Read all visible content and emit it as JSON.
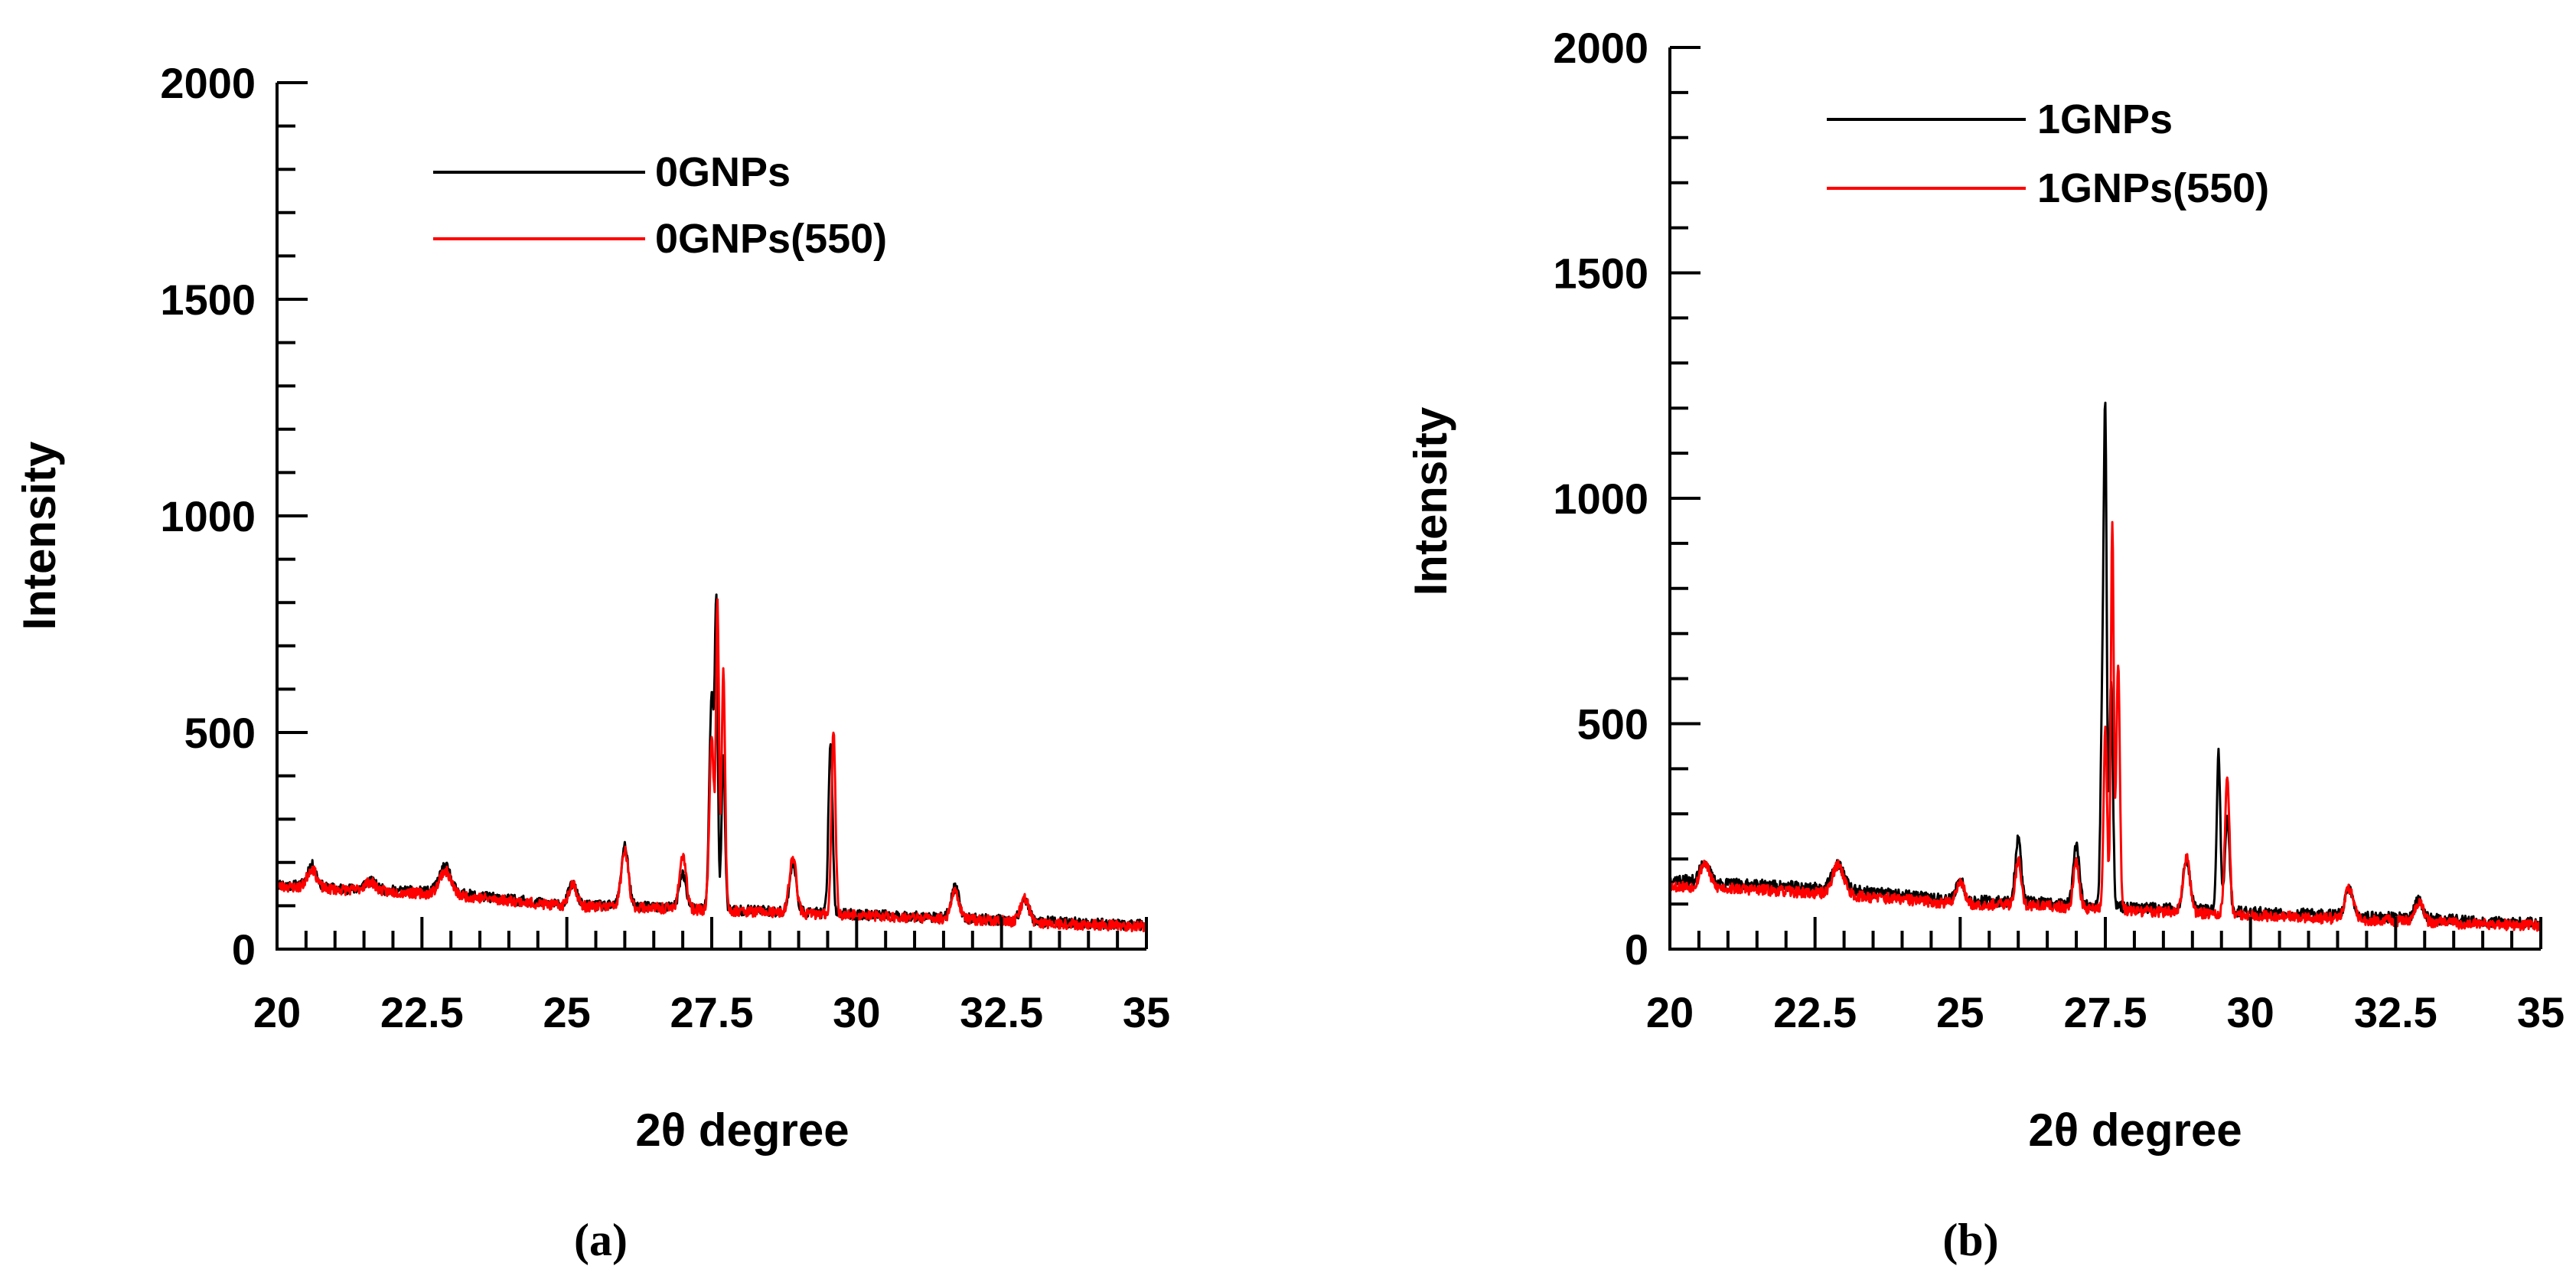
{
  "chart_data": [
    {
      "type": "line",
      "panel_label": "(a)",
      "xlabel": "2θ degree",
      "ylabel": "Intensity",
      "xlim": [
        20,
        35
      ],
      "ylim": [
        0,
        2000
      ],
      "xticks": [
        20,
        22.5,
        25,
        27.5,
        30,
        32.5,
        35
      ],
      "xtick_labels": [
        "20",
        "22.5",
        "25",
        "27.5",
        "30",
        "32.5",
        "35"
      ],
      "yticks": [
        0,
        500,
        1000,
        1500,
        2000
      ],
      "ytick_labels": [
        "0",
        "500",
        "1000",
        "1500",
        "2000"
      ],
      "x_minor_step": 0.5,
      "y_minor_step": 100,
      "legend_position": "top-center",
      "series": [
        {
          "name": "0GNPs",
          "color": "#000000",
          "baseline": [
            [
              20,
              150
            ],
            [
              21,
              140
            ],
            [
              22,
              135
            ],
            [
              23,
              130
            ],
            [
              24,
              115
            ],
            [
              25,
              100
            ],
            [
              26,
              100
            ],
            [
              27,
              95
            ],
            [
              28,
              90
            ],
            [
              29,
              85
            ],
            [
              30,
              80
            ],
            [
              31,
              75
            ],
            [
              32,
              70
            ],
            [
              33,
              65
            ],
            [
              34,
              60
            ],
            [
              35,
              55
            ]
          ],
          "peaks": [
            [
              20.6,
              50,
              0.08
            ],
            [
              21.6,
              20,
              0.1
            ],
            [
              22.9,
              60,
              0.1
            ],
            [
              25.1,
              50,
              0.07
            ],
            [
              26.0,
              140,
              0.06
            ],
            [
              27.0,
              80,
              0.06
            ],
            [
              27.5,
              500,
              0.04
            ],
            [
              27.58,
              650,
              0.025
            ],
            [
              27.7,
              350,
              0.03
            ],
            [
              28.9,
              110,
              0.06
            ],
            [
              29.55,
              400,
              0.035
            ],
            [
              31.7,
              70,
              0.07
            ],
            [
              32.9,
              50,
              0.07
            ]
          ],
          "noise": 12,
          "seed": 11
        },
        {
          "name": "0GNPs(550)",
          "color": "#ff0000",
          "baseline": [
            [
              20,
              145
            ],
            [
              21,
              138
            ],
            [
              22,
              132
            ],
            [
              23,
              125
            ],
            [
              24,
              112
            ],
            [
              25,
              98
            ],
            [
              26,
              98
            ],
            [
              27,
              92
            ],
            [
              28,
              88
            ],
            [
              29,
              82
            ],
            [
              30,
              78
            ],
            [
              31,
              72
            ],
            [
              32,
              68
            ],
            [
              33,
              62
            ],
            [
              34,
              56
            ],
            [
              35,
              52
            ]
          ],
          "peaks": [
            [
              20.6,
              45,
              0.08
            ],
            [
              21.6,
              20,
              0.1
            ],
            [
              22.9,
              55,
              0.1
            ],
            [
              25.1,
              55,
              0.07
            ],
            [
              26.0,
              130,
              0.06
            ],
            [
              27.0,
              120,
              0.06
            ],
            [
              27.5,
              400,
              0.04
            ],
            [
              27.6,
              700,
              0.025
            ],
            [
              27.7,
              550,
              0.03
            ],
            [
              28.9,
              130,
              0.06
            ],
            [
              29.6,
              420,
              0.035
            ],
            [
              31.7,
              65,
              0.07
            ],
            [
              32.9,
              55,
              0.07
            ]
          ],
          "noise": 12,
          "seed": 23
        }
      ]
    },
    {
      "type": "line",
      "panel_label": "(b)",
      "xlabel": "2θ degree",
      "ylabel": "Intensity",
      "xlim": [
        20,
        35
      ],
      "ylim": [
        0,
        2000
      ],
      "xticks": [
        20,
        22.5,
        25,
        27.5,
        30,
        32.5,
        35
      ],
      "xtick_labels": [
        "20",
        "22.5",
        "25",
        "27.5",
        "30",
        "32.5",
        "35"
      ],
      "yticks": [
        0,
        500,
        1000,
        1500,
        2000
      ],
      "ytick_labels": [
        "0",
        "500",
        "1000",
        "1500",
        "2000"
      ],
      "x_minor_step": 0.5,
      "y_minor_step": 100,
      "legend_position": "top-center",
      "series": [
        {
          "name": "1GNPs",
          "color": "#000000",
          "baseline": [
            [
              20,
              155
            ],
            [
              21,
              145
            ],
            [
              22,
              140
            ],
            [
              23,
              132
            ],
            [
              24,
              120
            ],
            [
              25,
              108
            ],
            [
              26,
              105
            ],
            [
              27,
              100
            ],
            [
              28,
              92
            ],
            [
              29,
              88
            ],
            [
              30,
              82
            ],
            [
              31,
              78
            ],
            [
              32,
              72
            ],
            [
              33,
              68
            ],
            [
              34,
              62
            ],
            [
              35,
              58
            ]
          ],
          "peaks": [
            [
              20.6,
              45,
              0.08
            ],
            [
              22.9,
              55,
              0.1
            ],
            [
              25.0,
              45,
              0.07
            ],
            [
              26.0,
              140,
              0.05
            ],
            [
              27.0,
              130,
              0.05
            ],
            [
              27.45,
              450,
              0.03
            ],
            [
              27.5,
              1000,
              0.025
            ],
            [
              27.6,
              500,
              0.03
            ],
            [
              28.9,
              110,
              0.06
            ],
            [
              29.45,
              350,
              0.03
            ],
            [
              29.6,
              200,
              0.04
            ],
            [
              31.7,
              60,
              0.07
            ],
            [
              32.9,
              40,
              0.07
            ]
          ],
          "noise": 12,
          "seed": 37
        },
        {
          "name": "1GNPs(550)",
          "color": "#ff0000",
          "baseline": [
            [
              20,
              140
            ],
            [
              21,
              135
            ],
            [
              22,
              128
            ],
            [
              23,
              120
            ],
            [
              24,
              110
            ],
            [
              25,
              100
            ],
            [
              26,
              98
            ],
            [
              27,
              92
            ],
            [
              28,
              85
            ],
            [
              29,
              80
            ],
            [
              30,
              75
            ],
            [
              31,
              70
            ],
            [
              32,
              65
            ],
            [
              33,
              60
            ],
            [
              34,
              55
            ],
            [
              35,
              52
            ]
          ],
          "peaks": [
            [
              20.6,
              55,
              0.08
            ],
            [
              22.9,
              65,
              0.1
            ],
            [
              25.0,
              50,
              0.07
            ],
            [
              26.0,
              100,
              0.05
            ],
            [
              27.0,
              100,
              0.05
            ],
            [
              27.5,
              400,
              0.03
            ],
            [
              27.62,
              850,
              0.025
            ],
            [
              27.72,
              550,
              0.03
            ],
            [
              28.9,
              120,
              0.06
            ],
            [
              29.6,
              300,
              0.04
            ],
            [
              31.7,
              70,
              0.07
            ],
            [
              32.9,
              45,
              0.07
            ]
          ],
          "noise": 12,
          "seed": 53
        }
      ]
    }
  ]
}
